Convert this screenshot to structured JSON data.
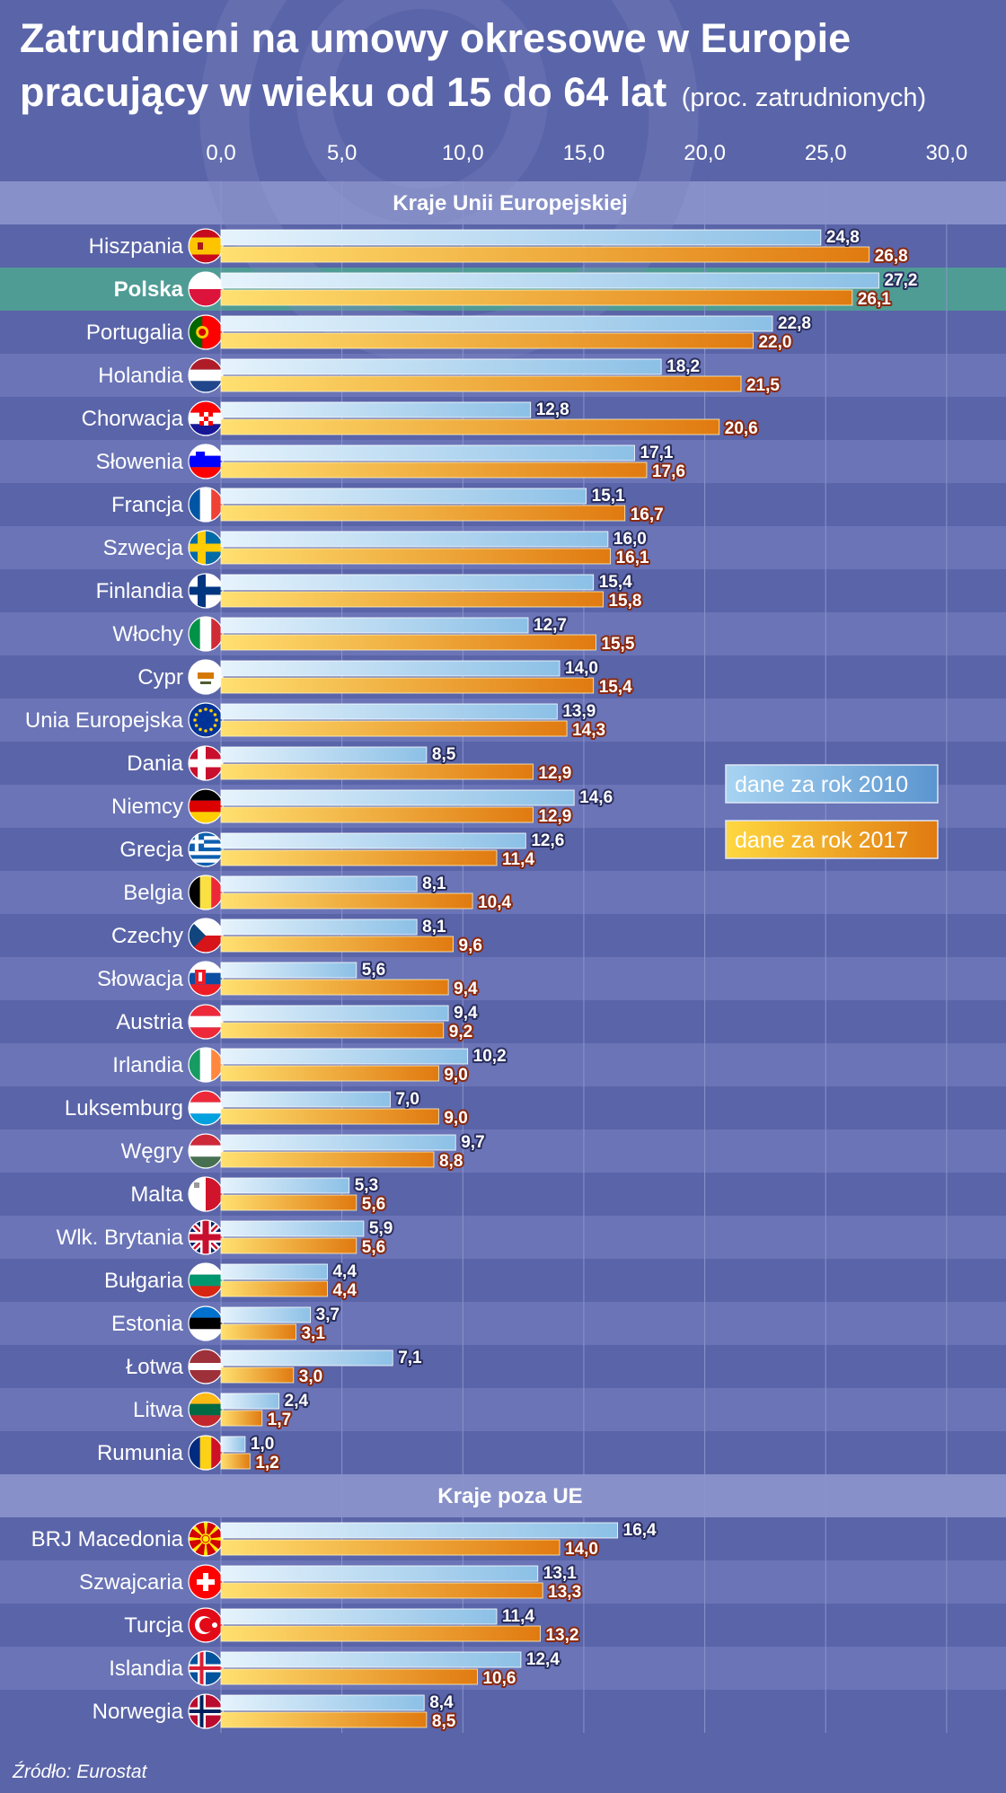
{
  "title_line1": "Zatrudnieni na umowy okresowe w Europie",
  "title_line2": "pracujący w wieku od 15 do 64 lat",
  "title_note": "(proc. zatrudnionych)",
  "source": "Źródło: Eurostat",
  "colors": {
    "background": "#5a64a8",
    "row_alt": "#6a74b6",
    "highlight_row": "#4f9c95",
    "section_band": "#8790c8",
    "bar_2010": "#b9dcf3",
    "bar_2017": "#f0a020"
  },
  "chart_data": {
    "type": "bar",
    "orientation": "horizontal",
    "xlim": [
      0,
      30
    ],
    "ticks": [
      "0,0",
      "5,0",
      "10,0",
      "15,0",
      "20,0",
      "25,0",
      "30,0"
    ],
    "grid": true,
    "legend_placement": "right",
    "series": [
      {
        "name": "dane za rok 2010"
      },
      {
        "name": "dane za rok 2017"
      }
    ],
    "sections": [
      {
        "title": "Kraje Unii Europejskiej",
        "rows": [
          {
            "label": "Hiszpania",
            "flag": "spain-flag-icon",
            "v2010": 24.8,
            "v2017": 26.8
          },
          {
            "label": "Polska",
            "flag": "poland-flag-icon",
            "v2010": 27.2,
            "v2017": 26.1,
            "highlight": true
          },
          {
            "label": "Portugalia",
            "flag": "portugal-flag-icon",
            "v2010": 22.8,
            "v2017": 22.0
          },
          {
            "label": "Holandia",
            "flag": "netherlands-flag-icon",
            "v2010": 18.2,
            "v2017": 21.5
          },
          {
            "label": "Chorwacja",
            "flag": "croatia-flag-icon",
            "v2010": 12.8,
            "v2017": 20.6
          },
          {
            "label": "Słowenia",
            "flag": "slovenia-flag-icon",
            "v2010": 17.1,
            "v2017": 17.6
          },
          {
            "label": "Francja",
            "flag": "france-flag-icon",
            "v2010": 15.1,
            "v2017": 16.7
          },
          {
            "label": "Szwecja",
            "flag": "sweden-flag-icon",
            "v2010": 16.0,
            "v2017": 16.1
          },
          {
            "label": "Finlandia",
            "flag": "finland-flag-icon",
            "v2010": 15.4,
            "v2017": 15.8
          },
          {
            "label": "Włochy",
            "flag": "italy-flag-icon",
            "v2010": 12.7,
            "v2017": 15.5
          },
          {
            "label": "Cypr",
            "flag": "cyprus-flag-icon",
            "v2010": 14.0,
            "v2017": 15.4
          },
          {
            "label": "Unia Europejska",
            "flag": "eu-flag-icon",
            "v2010": 13.9,
            "v2017": 14.3
          },
          {
            "label": "Dania",
            "flag": "denmark-flag-icon",
            "v2010": 8.5,
            "v2017": 12.9
          },
          {
            "label": "Niemcy",
            "flag": "germany-flag-icon",
            "v2010": 14.6,
            "v2017": 12.9
          },
          {
            "label": "Grecja",
            "flag": "greece-flag-icon",
            "v2010": 12.6,
            "v2017": 11.4
          },
          {
            "label": "Belgia",
            "flag": "belgium-flag-icon",
            "v2010": 8.1,
            "v2017": 10.4
          },
          {
            "label": "Czechy",
            "flag": "czechia-flag-icon",
            "v2010": 8.1,
            "v2017": 9.6
          },
          {
            "label": "Słowacja",
            "flag": "slovakia-flag-icon",
            "v2010": 5.6,
            "v2017": 9.4
          },
          {
            "label": "Austria",
            "flag": "austria-flag-icon",
            "v2010": 9.4,
            "v2017": 9.2
          },
          {
            "label": "Irlandia",
            "flag": "ireland-flag-icon",
            "v2010": 10.2,
            "v2017": 9.0
          },
          {
            "label": "Luksemburg",
            "flag": "luxembourg-flag-icon",
            "v2010": 7.0,
            "v2017": 9.0
          },
          {
            "label": "Węgry",
            "flag": "hungary-flag-icon",
            "v2010": 9.7,
            "v2017": 8.8
          },
          {
            "label": "Malta",
            "flag": "malta-flag-icon",
            "v2010": 5.3,
            "v2017": 5.6
          },
          {
            "label": "Wlk. Brytania",
            "flag": "uk-flag-icon",
            "v2010": 5.9,
            "v2017": 5.6
          },
          {
            "label": "Bułgaria",
            "flag": "bulgaria-flag-icon",
            "v2010": 4.4,
            "v2017": 4.4
          },
          {
            "label": "Estonia",
            "flag": "estonia-flag-icon",
            "v2010": 3.7,
            "v2017": 3.1
          },
          {
            "label": "Łotwa",
            "flag": "latvia-flag-icon",
            "v2010": 7.1,
            "v2017": 3.0
          },
          {
            "label": "Litwa",
            "flag": "lithuania-flag-icon",
            "v2010": 2.4,
            "v2017": 1.7
          },
          {
            "label": "Rumunia",
            "flag": "romania-flag-icon",
            "v2010": 1.0,
            "v2017": 1.2
          }
        ]
      },
      {
        "title": "Kraje poza UE",
        "rows": [
          {
            "label": "BRJ Macedonia",
            "flag": "macedonia-flag-icon",
            "v2010": 16.4,
            "v2017": 14.0
          },
          {
            "label": "Szwajcaria",
            "flag": "switzerland-flag-icon",
            "v2010": 13.1,
            "v2017": 13.3
          },
          {
            "label": "Turcja",
            "flag": "turkey-flag-icon",
            "v2010": 11.4,
            "v2017": 13.2
          },
          {
            "label": "Islandia",
            "flag": "iceland-flag-icon",
            "v2010": 12.4,
            "v2017": 10.6
          },
          {
            "label": "Norwegia",
            "flag": "norway-flag-icon",
            "v2010": 8.4,
            "v2017": 8.5
          }
        ]
      }
    ]
  }
}
